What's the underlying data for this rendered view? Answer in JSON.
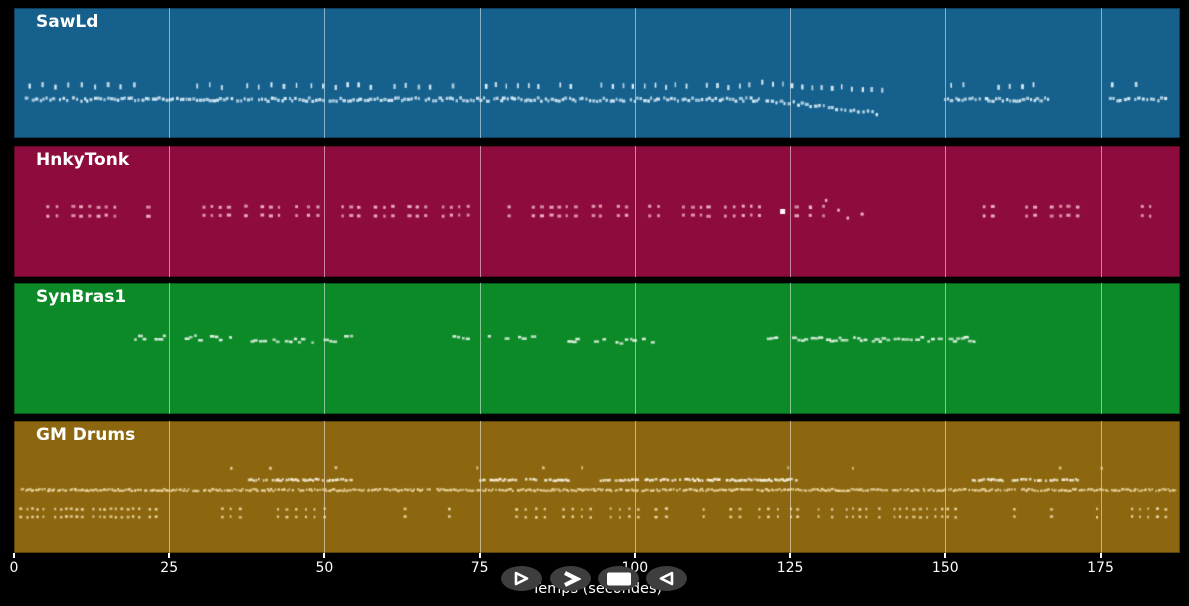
{
  "figure": {
    "background": "#000000",
    "text_color": "#ffffff",
    "grid_color": "rgba(255,255,255,0.5)",
    "xlabel": "Temps (secondes)",
    "axis_ticks": [
      0,
      25,
      50,
      75,
      100,
      125,
      150,
      175
    ],
    "gridline_times": [
      25,
      50,
      75,
      100,
      125,
      150,
      175
    ],
    "time_max": 187.8
  },
  "chart_data": {
    "type": "scatter",
    "title": "",
    "xlabel": "Temps (secondes)",
    "x_range": [
      0,
      187.8
    ],
    "legend_position": "none",
    "grid": "vertical-25s",
    "description": "Four stacked MIDI track lanes, notes drawn as small light rectangles over colored lane backgrounds"
  },
  "tracks": [
    {
      "name": "SawLd",
      "bg": "#15608d",
      "rows": [
        {
          "name": "upper-melody",
          "color": "#e3f1f9",
          "y": 0.6,
          "w": 2,
          "h": 5,
          "jitter": 1.6,
          "step": 1.9,
          "dropout": 0.12,
          "seed": 11,
          "segments": [
            [
              2.5,
              23,
              2.1
            ],
            [
              27.5,
              46.5,
              2.0
            ],
            [
              48,
              74.5,
              1.9
            ],
            [
              76,
              119,
              1.7
            ],
            [
              119,
              140,
              1.6,
              0.575,
              0.635
            ],
            [
              151,
              166,
              1.9
            ],
            [
              177,
              184.5,
              1.9
            ]
          ]
        },
        {
          "name": "main-riff",
          "color": "#d5eaf5",
          "y": 0.705,
          "w": 2.6,
          "h": 3.2,
          "jitter": 1.8,
          "step": 0.55,
          "dropout": 0.06,
          "seed": 12,
          "segments": [
            [
              2,
              120,
              0.55
            ],
            [
              120,
              139.5,
              0.7,
              0.705,
              0.81
            ],
            [
              150,
              167,
              0.55
            ],
            [
              176.5,
              185.5,
              0.6
            ]
          ]
        }
      ],
      "accents": []
    },
    {
      "name": "HnkyTonk",
      "bg": "#8e0c3d",
      "rows": [
        {
          "name": "chord-pairs",
          "color": "#f2b3c4",
          "y": 0.464,
          "pair_dy": 0.068,
          "w": 3,
          "h": 3,
          "jitter": 0.7,
          "step": 1.35,
          "dropout": 0.3,
          "seed": 21,
          "segments": [
            [
              5.5,
              23.5
            ],
            [
              26.5,
              45.5
            ],
            [
              47.5,
              73.5
            ],
            [
              77,
              101
            ],
            [
              102.5,
              122.5
            ],
            [
              126,
              132,
              2.2
            ],
            [
              155,
              171.5
            ],
            [
              180.5,
              183.8,
              1.3
            ]
          ]
        }
      ],
      "accents": [
        {
          "t": 123.8,
          "y": 0.5,
          "w": 5,
          "h": 5,
          "color": "#ffffff"
        },
        {
          "t": 128.3,
          "y": 0.47,
          "w": 3,
          "h": 3,
          "color": "#f2b3c4"
        },
        {
          "t": 130.8,
          "y": 0.415,
          "w": 2.5,
          "h": 3,
          "color": "#f2b3c4"
        },
        {
          "t": 132.8,
          "y": 0.49,
          "w": 2.5,
          "h": 3,
          "color": "#f2b3c4"
        },
        {
          "t": 134.3,
          "y": 0.55,
          "w": 2.5,
          "h": 3,
          "color": "#f2b3c4"
        },
        {
          "t": 136.6,
          "y": 0.52,
          "w": 3,
          "h": 3,
          "color": "#f2b3c4"
        }
      ]
    },
    {
      "name": "SynBras1",
      "bg": "#0c8a28",
      "rows": [
        {
          "name": "brass-phrases",
          "color": "#e4f3e6",
          "y": 0.42,
          "w": 3.6,
          "h": 2.6,
          "jitter": 2.4,
          "step": 0.75,
          "dropout": 0.3,
          "seed": 31,
          "segments": [
            [
              19.5,
              21.8
            ],
            [
              22.8,
              25.4
            ],
            [
              27,
              30.2
            ],
            [
              31.8,
              35.4
            ],
            [
              37.6,
              52.3,
              0.7,
              0.445,
              0.445
            ],
            [
              52.8,
              54.3
            ],
            [
              69.4,
              73.6
            ],
            [
              76.5,
              80.8
            ],
            [
              81.5,
              86
            ],
            [
              89.5,
              104,
              0.7,
              0.445,
              0.445
            ],
            [
              121,
              155,
              0.6,
              0.43,
              0.43
            ]
          ]
        }
      ],
      "accents": []
    },
    {
      "name": "GM Drums",
      "bg": "#8c670f",
      "rows": [
        {
          "name": "crash-hits",
          "color": "#eedaa6",
          "y": 0.356,
          "w": 2,
          "h": 3,
          "jitter": 0.4,
          "seed": 41,
          "times": [
            35,
            41.3,
            51.8,
            74.5,
            85.2,
            91.5,
            124.7,
            135.2,
            168.5,
            175.2
          ]
        },
        {
          "name": "snare-fills",
          "color": "#f8f1dc",
          "y": 0.447,
          "w": 2.4,
          "h": 2.6,
          "jitter": 0.9,
          "step": 0.4,
          "dropout": 0.16,
          "seed": 42,
          "segments": [
            [
              37.8,
              54.5
            ],
            [
              74.8,
              90
            ],
            [
              94.5,
              126.5
            ],
            [
              154.5,
              171.5
            ]
          ]
        },
        {
          "name": "hihat-line",
          "color": "#e8d29b",
          "y": 0.523,
          "w": 2.1,
          "h": 2.4,
          "jitter": 1.0,
          "step": 0.33,
          "dropout": 0.07,
          "seed": 43,
          "segments": [
            [
              1.2,
              187.3
            ]
          ]
        },
        {
          "name": "kick-snare-pairs",
          "color": "#eedaa6",
          "y": 0.667,
          "pair_dy": 0.06,
          "w": 2.2,
          "h": 2.6,
          "jitter": 0.5,
          "step": 1.1,
          "dropout": 0.2,
          "seed": 44,
          "segments": [
            [
              1.2,
              23.5,
              0.9
            ],
            [
              32,
              52.5,
              1.5
            ],
            [
              63,
              64.2,
              1.2
            ],
            [
              70,
              71.2,
              1.2
            ],
            [
              81,
              122,
              1.5
            ],
            [
              123,
              152,
              1.1
            ],
            [
              160,
              161.2,
              1.2
            ],
            [
              166,
              167.2,
              1.2
            ],
            [
              174.5,
              175.7,
              1.2
            ],
            [
              180,
              186.2,
              1.4
            ]
          ]
        }
      ],
      "accents": []
    }
  ],
  "transport": {
    "button_bg": "#3e3e3e",
    "icon_color": "#ffffff",
    "buttons": [
      {
        "id": "play",
        "icon": "play-outline-icon",
        "shape": "triangle-right-outline"
      },
      {
        "id": "fast-forward",
        "icon": "fast-forward-icon",
        "shape": "chevron-right"
      },
      {
        "id": "stop",
        "icon": "stop-icon",
        "shape": "filled-rect"
      },
      {
        "id": "rewind",
        "icon": "rewind-outline-icon",
        "shape": "triangle-left-outline"
      }
    ]
  }
}
